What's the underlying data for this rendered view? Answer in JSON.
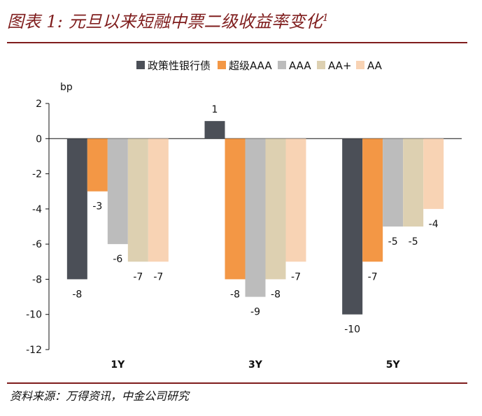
{
  "header": {
    "title": "图表 1: 元旦以来短融中票二级收益率变化",
    "title_footnote": "1"
  },
  "source": {
    "text": "资料来源：万得资讯，中金公司研究"
  },
  "colors": {
    "title": "#7f1d1d",
    "rule": "#7f1d1d",
    "axis": "#111111"
  },
  "chart_data": {
    "type": "bar",
    "categories": [
      "1Y",
      "3Y",
      "5Y"
    ],
    "series": [
      {
        "name": "政策性银行债",
        "color": "#4b4f57",
        "values": [
          -8,
          1,
          -10
        ]
      },
      {
        "name": "超级AAA",
        "color": "#f39745",
        "values": [
          -3,
          -8,
          -7
        ]
      },
      {
        "name": "AAA",
        "color": "#bcbcbc",
        "values": [
          -6,
          -9,
          -5
        ]
      },
      {
        "name": "AA+",
        "color": "#ddd0b1",
        "values": [
          -7,
          -8,
          -5
        ]
      },
      {
        "name": "AA",
        "color": "#f8d3b4",
        "values": [
          -7,
          -7,
          -4
        ]
      }
    ],
    "ylabel": "bp",
    "ylim": [
      -12,
      2
    ],
    "yticks": [
      2,
      0,
      -2,
      -4,
      -6,
      -8,
      -10,
      -12
    ],
    "grid": false,
    "legend_position": "top"
  }
}
